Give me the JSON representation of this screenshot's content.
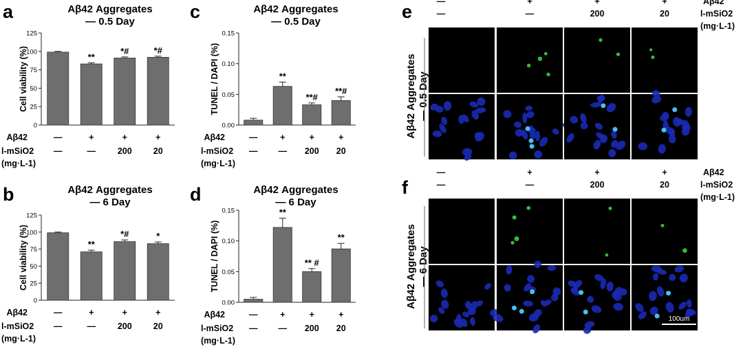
{
  "colors": {
    "bar": "#6e6e6e",
    "dapi": "#1a2ab4",
    "tunel": "#3ecf3e",
    "text": "#111111"
  },
  "condition_labels": {
    "abeta": "Aβ42",
    "msio2": "l-mSiO2",
    "unit": "(mg·L-1)",
    "abeta_values": [
      "—",
      "+",
      "+",
      "+"
    ],
    "msio2_values": [
      "—",
      "—",
      "200",
      "20"
    ]
  },
  "panels": [
    {
      "letter": "a",
      "title1": "Aβ42 Aggregates",
      "title2": "— 0.5 Day"
    },
    {
      "letter": "b",
      "title1": "Aβ42 Aggregates",
      "title2": "— 6 Day"
    },
    {
      "letter": "c",
      "title1": "Aβ42 Aggregates",
      "title2": "— 0.5 Day"
    },
    {
      "letter": "d",
      "title1": "Aβ42 Aggregates",
      "title2": "— 6 Day"
    },
    {
      "letter": "e",
      "side_line1": "Aβ42 Aggregates",
      "side_line2": "— 0.5 Day"
    },
    {
      "letter": "f",
      "side_line1": "Aβ42 Aggregates",
      "side_line2": "— 6 Day"
    }
  ],
  "scale_bar": "100um",
  "chart_data": [
    {
      "type": "bar",
      "title": "Aβ42 Aggregates — 0.5 Day",
      "ylabel": "Cell viability (%)",
      "ylim": [
        0,
        125
      ],
      "yticks": [
        "0",
        "25",
        "50",
        "75",
        "100",
        "125"
      ],
      "values": [
        99,
        83,
        91,
        92
      ],
      "errors": [
        1,
        1.5,
        1.5,
        1.5
      ],
      "significance": [
        "",
        "**",
        "*#",
        "*#"
      ]
    },
    {
      "type": "bar",
      "title": "Aβ42 Aggregates — 6 Day",
      "ylabel": "Cell viability (%)",
      "ylim": [
        0,
        125
      ],
      "yticks": [
        "0",
        "25",
        "50",
        "75",
        "100",
        "125"
      ],
      "values": [
        99,
        71,
        86,
        83
      ],
      "errors": [
        1,
        2.5,
        2.5,
        2.5
      ],
      "significance": [
        "",
        "**",
        "*#",
        "*"
      ]
    },
    {
      "type": "bar",
      "title": "Aβ42 Aggregates — 0.5 Day",
      "ylabel": "TUNEL / DAPI (%)",
      "ylim": [
        0,
        0.15
      ],
      "yticks": [
        "0.00",
        "0.05",
        "0.10",
        "0.15"
      ],
      "values": [
        0.008,
        0.063,
        0.033,
        0.04
      ],
      "errors": [
        0.003,
        0.007,
        0.003,
        0.006
      ],
      "significance": [
        "",
        "**",
        "**#",
        "**#"
      ]
    },
    {
      "type": "bar",
      "title": "Aβ42 Aggregates — 6 Day",
      "ylabel": "TUNEL / DAPI (%)",
      "ylim": [
        0,
        0.15
      ],
      "yticks": [
        "0.00",
        "0.05",
        "0.10",
        "0.15"
      ],
      "values": [
        0.005,
        0.122,
        0.05,
        0.087
      ],
      "errors": [
        0.003,
        0.015,
        0.005,
        0.009
      ],
      "significance": [
        "",
        "**",
        "** #",
        "**"
      ]
    }
  ]
}
